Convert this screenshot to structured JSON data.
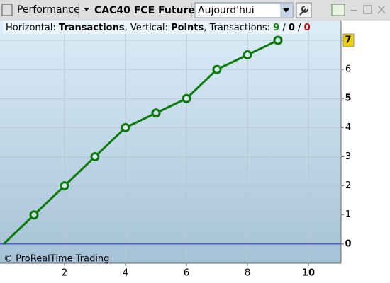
{
  "toolbar": {
    "indicator": "Performance",
    "instrument": "CAC40 FCE Future",
    "period": "Aujourd'hui"
  },
  "info": {
    "horizontal_label": "Horizontal:",
    "horizontal": "Transactions",
    "vertical_label": ", Vertical:",
    "vertical": "Points",
    "count_label": ", Transactions:",
    "wins": "9",
    "neutral": "0",
    "losses": "0",
    "sep": "/"
  },
  "watermark": "© ProRealTime Trading",
  "chart_data": {
    "type": "line",
    "x": [
      0,
      1,
      2,
      3,
      4,
      5,
      6,
      7,
      8,
      9
    ],
    "values": [
      0,
      1,
      2,
      3,
      4,
      4.5,
      5,
      6,
      6.5,
      7
    ],
    "color": "#0a7a0a",
    "xlim": [
      0,
      11.07
    ],
    "xticks": [
      2,
      4,
      6,
      8,
      10
    ],
    "ylim": [
      -0.66,
      7.68
    ],
    "yticks": [
      0,
      1,
      2,
      3,
      4,
      5,
      6,
      7
    ],
    "grid": true
  }
}
